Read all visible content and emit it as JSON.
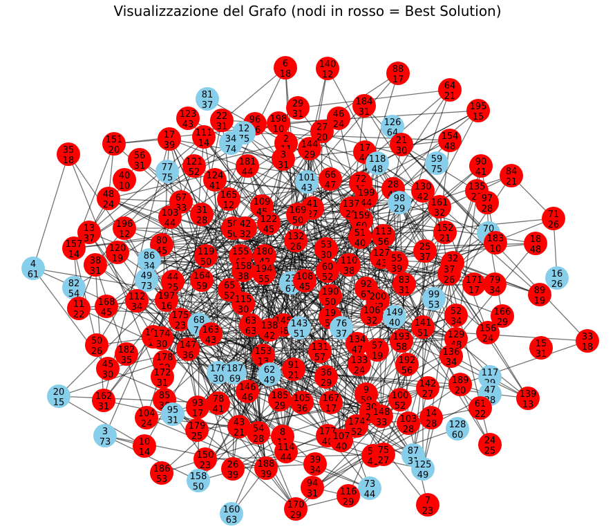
{
  "title": "Visualizzazione del Grafo (nodi in rosso = Best Solution)",
  "colors": {
    "best_solution": "#ff0000",
    "other": "#87ceeb",
    "edge": "#000000"
  },
  "nodes": [
    {
      "id": "6",
      "w": "18",
      "s": 1
    },
    {
      "id": "140",
      "w": "12",
      "s": 1
    },
    {
      "id": "88",
      "w": "17",
      "s": 1
    },
    {
      "id": "64",
      "w": "21",
      "s": 1
    },
    {
      "id": "81",
      "w": "37",
      "s": 0
    },
    {
      "id": "29",
      "w": "31",
      "s": 1
    },
    {
      "id": "46",
      "w": "24",
      "s": 1
    },
    {
      "id": "184",
      "w": "31",
      "s": 1
    },
    {
      "id": "195",
      "w": "15",
      "s": 1
    },
    {
      "id": "123",
      "w": "43",
      "s": 1
    },
    {
      "id": "22",
      "w": "31",
      "s": 1
    },
    {
      "id": "96",
      "w": "36",
      "s": 1
    },
    {
      "id": "198",
      "w": "10",
      "s": 1
    },
    {
      "id": "126",
      "w": "64",
      "s": 0
    },
    {
      "id": "17",
      "w": "39",
      "s": 1
    },
    {
      "id": "111",
      "w": "14",
      "s": 1
    },
    {
      "id": "12",
      "w": "75",
      "s": 0
    },
    {
      "id": "34",
      "w": "74",
      "s": 0
    },
    {
      "id": "2",
      "w": "11",
      "s": 1
    },
    {
      "id": "27",
      "w": "20",
      "s": 1
    },
    {
      "id": "144",
      "w": "29",
      "s": 1
    },
    {
      "id": "21",
      "w": "30",
      "s": 1
    },
    {
      "id": "154",
      "w": "48",
      "s": 1
    },
    {
      "id": "151",
      "w": "20",
      "s": 1
    },
    {
      "id": "35",
      "w": "18",
      "s": 1
    },
    {
      "id": "56",
      "w": "31",
      "s": 1
    },
    {
      "id": "121",
      "w": "52",
      "s": 1
    },
    {
      "id": "181",
      "w": "44",
      "s": 1
    },
    {
      "id": "3",
      "w": "31",
      "s": 1
    },
    {
      "id": "17b",
      "w": "44",
      "s": 1
    },
    {
      "id": "118",
      "w": "48",
      "s": 0
    },
    {
      "id": "59",
      "w": "75",
      "s": 0
    },
    {
      "id": "90",
      "w": "41",
      "s": 1
    },
    {
      "id": "84",
      "w": "21",
      "s": 1
    },
    {
      "id": "77",
      "w": "75",
      "s": 0
    },
    {
      "id": "40",
      "w": "10",
      "s": 1
    },
    {
      "id": "124",
      "w": "41",
      "s": 1
    },
    {
      "id": "101",
      "w": "43",
      "s": 0
    },
    {
      "id": "66",
      "w": "47",
      "s": 1
    },
    {
      "id": "72",
      "w": "15",
      "s": 1
    },
    {
      "id": "199",
      "w": "44",
      "s": 1
    },
    {
      "id": "28",
      "w": "45",
      "s": 1
    },
    {
      "id": "130",
      "w": "42",
      "s": 1
    },
    {
      "id": "135",
      "w": "23",
      "s": 1
    },
    {
      "id": "48",
      "w": "24",
      "s": 1
    },
    {
      "id": "67",
      "w": "33",
      "s": 1
    },
    {
      "id": "165",
      "w": "12",
      "s": 1
    },
    {
      "id": "98",
      "w": "29",
      "s": 0
    },
    {
      "id": "161",
      "w": "32",
      "s": 1
    },
    {
      "id": "97",
      "w": "28",
      "s": 1
    },
    {
      "id": "71",
      "w": "26",
      "s": 1
    },
    {
      "id": "103",
      "w": "44",
      "s": 1
    },
    {
      "id": "31",
      "w": "28",
      "s": 1
    },
    {
      "id": "109",
      "w": "45",
      "s": 1
    },
    {
      "id": "41",
      "w": "27",
      "s": 1
    },
    {
      "id": "137",
      "w": "20",
      "s": 1
    },
    {
      "id": "196",
      "w": "12",
      "s": 1
    },
    {
      "id": "58",
      "w": "50",
      "s": 1
    },
    {
      "id": "42",
      "w": "32",
      "s": 1
    },
    {
      "id": "122",
      "w": "45",
      "s": 1
    },
    {
      "id": "169",
      "w": "50",
      "s": 1
    },
    {
      "id": "159",
      "w": "60",
      "s": 1
    },
    {
      "id": "152",
      "w": "21",
      "s": 1
    },
    {
      "id": "70",
      "w": "2",
      "s": 0
    },
    {
      "id": "13",
      "w": "37",
      "s": 1
    },
    {
      "id": "132",
      "w": "26",
      "s": 1
    },
    {
      "id": "113",
      "w": "56",
      "s": 1
    },
    {
      "id": "80",
      "w": "45",
      "s": 1
    },
    {
      "id": "51",
      "w": "40",
      "s": 1
    },
    {
      "id": "183",
      "w": "10",
      "s": 1
    },
    {
      "id": "18",
      "w": "48",
      "s": 1
    },
    {
      "id": "157",
      "w": "14",
      "s": 1
    },
    {
      "id": "120",
      "w": "19",
      "s": 1
    },
    {
      "id": "119",
      "w": "50",
      "s": 1
    },
    {
      "id": "155",
      "w": "43",
      "s": 1
    },
    {
      "id": "180",
      "w": "42",
      "s": 1
    },
    {
      "id": "53",
      "w": "30",
      "s": 1
    },
    {
      "id": "127",
      "w": "43",
      "s": 1
    },
    {
      "id": "25",
      "w": "37",
      "s": 1
    },
    {
      "id": "86",
      "w": "34",
      "s": 0
    },
    {
      "id": "4",
      "w": "61",
      "s": 0
    },
    {
      "id": "38",
      "w": "31",
      "s": 1
    },
    {
      "id": "158b",
      "w": "38",
      "s": 1
    },
    {
      "id": "194",
      "w": "55",
      "s": 1
    },
    {
      "id": "110",
      "w": "38",
      "s": 1
    },
    {
      "id": "55",
      "w": "39",
      "s": 1
    },
    {
      "id": "32",
      "w": "11",
      "s": 1
    },
    {
      "id": "37",
      "w": "26",
      "s": 1
    },
    {
      "id": "60",
      "w": "52",
      "s": 1
    },
    {
      "id": "49",
      "w": "73",
      "s": 0
    },
    {
      "id": "44",
      "w": "25",
      "s": 1
    },
    {
      "id": "164",
      "w": "59",
      "s": 1
    },
    {
      "id": "23",
      "w": "67",
      "s": 0
    },
    {
      "id": "108",
      "w": "45",
      "s": 1
    },
    {
      "id": "82",
      "w": "54",
      "s": 0
    },
    {
      "id": "65",
      "w": "52",
      "s": 1
    },
    {
      "id": "83",
      "w": "31",
      "s": 1
    },
    {
      "id": "79",
      "w": "34",
      "s": 1
    },
    {
      "id": "16",
      "w": "26",
      "s": 0
    },
    {
      "id": "171",
      "w": "17",
      "s": 1
    },
    {
      "id": "89",
      "w": "19",
      "s": 1
    },
    {
      "id": "112",
      "w": "34",
      "s": 1
    },
    {
      "id": "115",
      "w": "30",
      "s": 1
    },
    {
      "id": "190",
      "w": "50",
      "s": 1
    },
    {
      "id": "92",
      "w": "61",
      "s": 1
    },
    {
      "id": "99",
      "w": "53",
      "s": 0
    },
    {
      "id": "197",
      "w": "16",
      "s": 1
    },
    {
      "id": "11",
      "w": "22",
      "s": 1
    },
    {
      "id": "168",
      "w": "45",
      "s": 1
    },
    {
      "id": "200",
      "w": "42",
      "s": 1
    },
    {
      "id": "175",
      "w": "23",
      "s": 1
    },
    {
      "id": "63",
      "w": "63",
      "s": 1
    },
    {
      "id": "106",
      "w": "32",
      "s": 1
    },
    {
      "id": "149",
      "w": "40",
      "s": 0
    },
    {
      "id": "52",
      "w": "34",
      "s": 1
    },
    {
      "id": "166",
      "w": "29",
      "s": 1
    },
    {
      "id": "19",
      "w": "52",
      "s": 1
    },
    {
      "id": "68",
      "w": "74",
      "s": 0
    },
    {
      "id": "145",
      "w": "48",
      "s": 1
    },
    {
      "id": "138",
      "w": "42",
      "s": 1
    },
    {
      "id": "143",
      "w": "51",
      "s": 0
    },
    {
      "id": "76",
      "w": "37",
      "s": 0
    },
    {
      "id": "141",
      "w": "51",
      "s": 1
    },
    {
      "id": "156",
      "w": "24",
      "s": 1
    },
    {
      "id": "191",
      "w": "11",
      "s": 1
    },
    {
      "id": "174",
      "w": "30",
      "s": 1
    },
    {
      "id": "163",
      "w": "43",
      "s": 1
    },
    {
      "id": "33",
      "w": "18",
      "s": 1
    },
    {
      "id": "50",
      "w": "26",
      "s": 1
    },
    {
      "id": "147",
      "w": "36",
      "s": 1
    },
    {
      "id": "134",
      "w": "47",
      "s": 1
    },
    {
      "id": "129",
      "w": "48",
      "s": 1
    },
    {
      "id": "131",
      "w": "57",
      "s": 1
    },
    {
      "id": "57",
      "w": "19",
      "s": 1
    },
    {
      "id": "193",
      "w": "58",
      "s": 1
    },
    {
      "id": "15",
      "w": "31",
      "s": 1
    },
    {
      "id": "182",
      "w": "35",
      "s": 1
    },
    {
      "id": "153",
      "w": "13",
      "s": 1
    },
    {
      "id": "178",
      "w": "59",
      "s": 1
    },
    {
      "id": "45",
      "w": "30",
      "s": 1
    },
    {
      "id": "136",
      "w": "34",
      "s": 1
    },
    {
      "id": "176",
      "w": "30",
      "s": 0
    },
    {
      "id": "187",
      "w": "69",
      "s": 0
    },
    {
      "id": "91",
      "w": "21",
      "s": 1
    },
    {
      "id": "133",
      "w": "24",
      "s": 1
    },
    {
      "id": "192",
      "w": "56",
      "s": 1
    },
    {
      "id": "172",
      "w": "31",
      "s": 1
    },
    {
      "id": "62",
      "w": "49",
      "s": 0
    },
    {
      "id": "36",
      "w": "29",
      "s": 1
    },
    {
      "id": "117",
      "w": "29",
      "s": 0
    },
    {
      "id": "189",
      "w": "20",
      "s": 1
    },
    {
      "id": "142",
      "w": "27",
      "s": 1
    },
    {
      "id": "47",
      "w": "38",
      "s": 0
    },
    {
      "id": "139",
      "w": "13",
      "s": 1
    },
    {
      "id": "20",
      "w": "15",
      "s": 0
    },
    {
      "id": "146",
      "w": "46",
      "s": 1
    },
    {
      "id": "85",
      "w": "38",
      "s": 1
    },
    {
      "id": "185",
      "w": "29",
      "s": 1
    },
    {
      "id": "105",
      "w": "36",
      "s": 1
    },
    {
      "id": "167",
      "w": "17",
      "s": 1
    },
    {
      "id": "9",
      "w": "59",
      "s": 1
    },
    {
      "id": "100",
      "w": "52",
      "s": 1
    },
    {
      "id": "61",
      "w": "22",
      "s": 1
    },
    {
      "id": "162",
      "w": "31",
      "s": 1
    },
    {
      "id": "93",
      "w": "17",
      "s": 1
    },
    {
      "id": "78",
      "w": "41",
      "s": 1
    },
    {
      "id": "95",
      "w": "31",
      "s": 0
    },
    {
      "id": "30",
      "w": "28",
      "s": 1
    },
    {
      "id": "148",
      "w": "33",
      "s": 1
    },
    {
      "id": "104",
      "w": "24",
      "s": 1
    },
    {
      "id": "179",
      "w": "25",
      "s": 1
    },
    {
      "id": "43",
      "w": "21",
      "s": 1
    },
    {
      "id": "174b",
      "w": "52",
      "s": 1
    },
    {
      "id": "103b",
      "w": "28",
      "s": 1
    },
    {
      "id": "14",
      "w": "28",
      "s": 1
    },
    {
      "id": "128",
      "w": "60",
      "s": 0
    },
    {
      "id": "3b",
      "w": "73",
      "s": 0
    },
    {
      "id": "10",
      "w": "14",
      "s": 1
    },
    {
      "id": "54",
      "w": "28",
      "s": 1
    },
    {
      "id": "8",
      "w": "11",
      "s": 1
    },
    {
      "id": "177",
      "w": "40",
      "s": 1
    },
    {
      "id": "107",
      "w": "40",
      "s": 1
    },
    {
      "id": "24",
      "w": "25",
      "s": 1
    },
    {
      "id": "114",
      "w": "44",
      "s": 1
    },
    {
      "id": "87",
      "w": "31",
      "s": 0
    },
    {
      "id": "150",
      "w": "23",
      "s": 1
    },
    {
      "id": "51b",
      "w": "41",
      "s": 1
    },
    {
      "id": "75",
      "w": "27",
      "s": 1
    },
    {
      "id": "125",
      "w": "49",
      "s": 0
    },
    {
      "id": "186",
      "w": "53",
      "s": 1
    },
    {
      "id": "26",
      "w": "39",
      "s": 1
    },
    {
      "id": "188",
      "w": "39",
      "s": 1
    },
    {
      "id": "39",
      "w": "34",
      "s": 1
    },
    {
      "id": "158",
      "w": "50",
      "s": 0
    },
    {
      "id": "94",
      "w": "31",
      "s": 1
    },
    {
      "id": "73",
      "w": "44",
      "s": 0
    },
    {
      "id": "116",
      "w": "29",
      "s": 1
    },
    {
      "id": "7",
      "w": "23",
      "s": 1
    },
    {
      "id": "160",
      "w": "63",
      "s": 0
    },
    {
      "id": "170",
      "w": "29",
      "s": 1
    }
  ]
}
